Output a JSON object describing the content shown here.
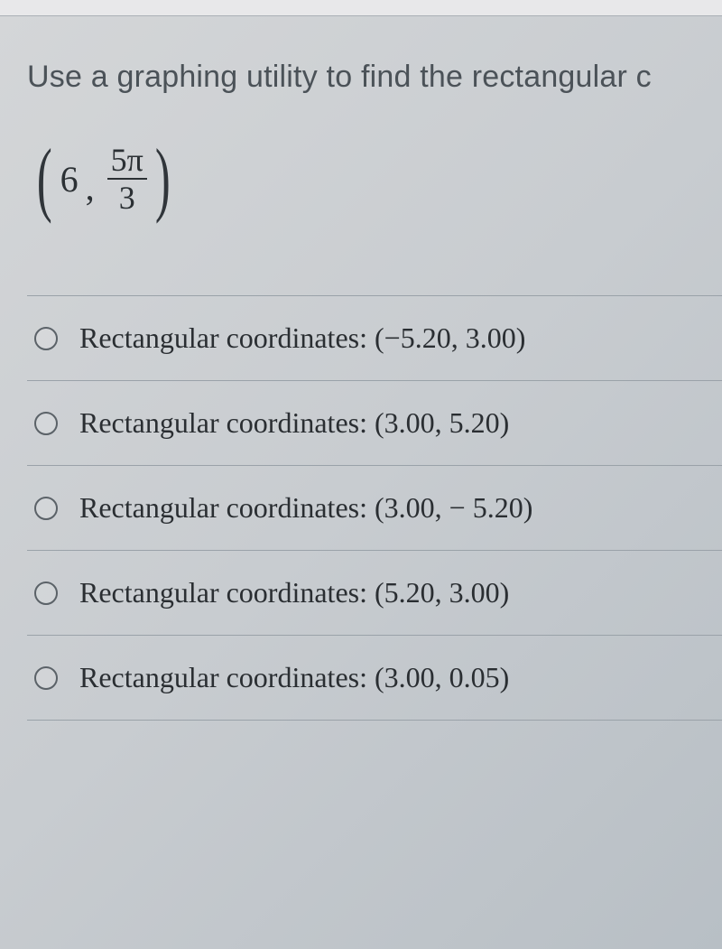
{
  "question_text": "Use a graphing utility to find the rectangular c",
  "polar": {
    "r": "6",
    "numerator": "5π",
    "denominator": "3"
  },
  "option_prefix": "Rectangular coordinates:",
  "options": [
    {
      "coords": "(−5.20, 3.00)"
    },
    {
      "coords": "(3.00, 5.20)"
    },
    {
      "coords": "(3.00, − 5.20)"
    },
    {
      "coords": "(5.20, 3.00)"
    },
    {
      "coords": "(3.00, 0.05)"
    }
  ],
  "colors": {
    "text_muted": "#4b5258",
    "text_main": "#2a2e32",
    "divider": "#9aa2a9",
    "radio_border": "#5b6268"
  }
}
